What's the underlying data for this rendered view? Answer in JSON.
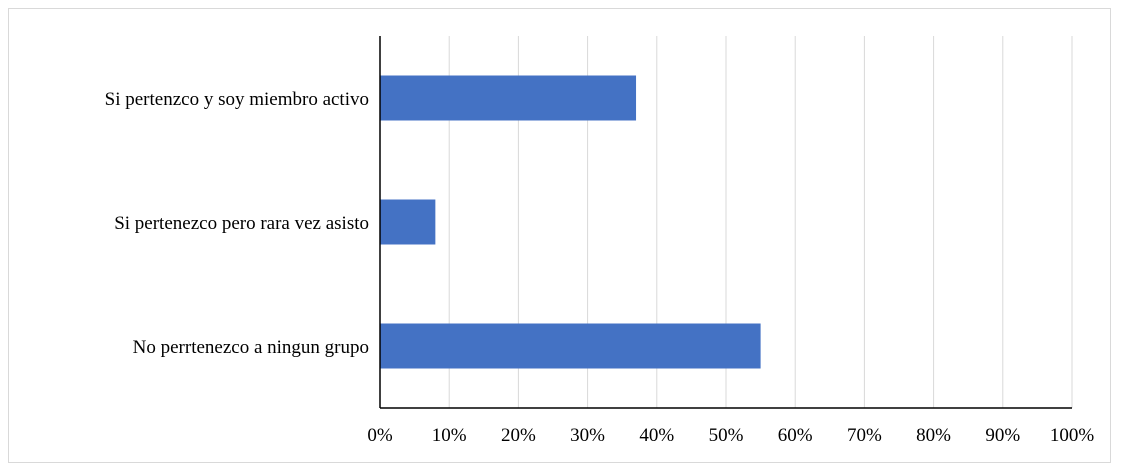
{
  "chart_data": {
    "type": "bar",
    "orientation": "horizontal",
    "categories": [
      "Si pertenzco y soy miembro activo",
      "Si pertenezco pero rara vez asisto",
      "No perrtenezco a ningun grupo"
    ],
    "values": [
      37,
      8,
      55
    ],
    "value_unit": "%",
    "xlim": [
      0,
      100
    ],
    "xticks": [
      "0%",
      "10%",
      "20%",
      "30%",
      "40%",
      "50%",
      "60%",
      "70%",
      "80%",
      "90%",
      "100%"
    ],
    "grid": "vertical",
    "legend": "none",
    "bar_color": "#4472c4",
    "grid_color": "#d9d9d9",
    "axis_color": "#000000"
  }
}
